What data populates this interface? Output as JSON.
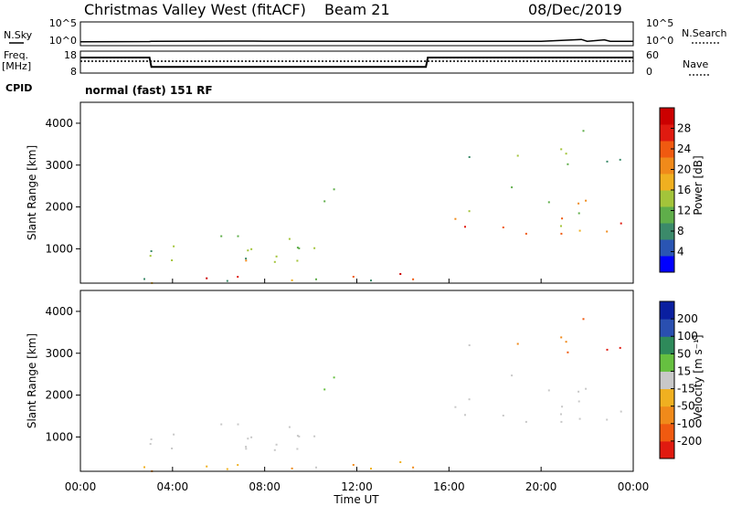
{
  "chart_data": [
    {
      "type": "line",
      "title": "Christmas Valley West (fitACF)",
      "beam": "Beam 21",
      "date": "08/Dec/2019",
      "left_label": "N.Sky",
      "right_label": "N.Search",
      "left_ticks": [
        "10^5",
        "10^0"
      ],
      "right_ticks": [
        "10^5",
        "10^0"
      ],
      "x": [
        "00:00",
        "03:00",
        "03:05",
        "07:30",
        "08:00",
        "12:00",
        "14:00",
        "15:00",
        "16:00",
        "18:00",
        "20:00",
        "21:45",
        "22:00",
        "22:45",
        "23:00",
        "24:00"
      ],
      "series": [
        {
          "values": [
            1.2,
            1.3,
            1.6,
            1.8,
            1.7,
            1.7,
            1.6,
            1.5,
            1.5,
            1.5,
            1.6,
            5.0,
            1.6,
            4.0,
            1.6,
            1.5
          ]
        }
      ]
    },
    {
      "type": "line",
      "left_label": "Freq.",
      "left_unit": "[MHz]",
      "right_label": "Nave",
      "left_ticks": [
        18,
        8
      ],
      "right_ticks": [
        60,
        0
      ],
      "cpid_label": "CPID",
      "cpid_text": "normal (fast) 151 RF",
      "x": [
        "00:00",
        "03:00",
        "03:05",
        "15:00",
        "15:05",
        "24:00"
      ],
      "series": [
        {
          "values": [
            15.5,
            15.5,
            10.4,
            10.4,
            15.5,
            15.5
          ]
        },
        {
          "values": [
            13.5,
            13.5,
            13.5,
            13.5,
            13.5,
            13.5
          ]
        }
      ]
    },
    {
      "type": "heatmap",
      "ylabel": "Slant Range [km]",
      "yticks": [
        1000,
        2000,
        3000,
        4000
      ],
      "ylim": [
        180,
        4500
      ],
      "colorbar_label": "Power [dB]",
      "colorbar_ticks": [
        "28",
        "24",
        "20",
        "16",
        "12",
        "8",
        "4"
      ]
    },
    {
      "type": "heatmap",
      "ylabel": "Slant Range [km]",
      "yticks": [
        1000,
        2000,
        3000,
        4000
      ],
      "ylim": [
        180,
        4500
      ],
      "colorbar_label": "Velocity [m s⁻¹]",
      "colorbar_ticks": [
        "200",
        "100",
        "50",
        "15",
        "-15",
        "-50",
        "-100",
        "-200"
      ]
    }
  ],
  "xticks": [
    "00:00",
    "04:00",
    "08:00",
    "12:00",
    "16:00",
    "20:00",
    "00:00"
  ],
  "xlabel": "Time UT",
  "colors": {
    "power_scale": [
      "#0000ff",
      "#2a55b3",
      "#3b8a6a",
      "#5fae4a",
      "#a3c43a",
      "#f0b020",
      "#f08a1a",
      "#f05a10",
      "#e01a10",
      "#cc0000"
    ],
    "velocity_scale": [
      "#e01a10",
      "#f05a10",
      "#f08a1a",
      "#f0b020",
      "#c8c8c8",
      "#66c040",
      "#2e8a5a",
      "#2a4fb0",
      "#0a1fa0"
    ]
  }
}
